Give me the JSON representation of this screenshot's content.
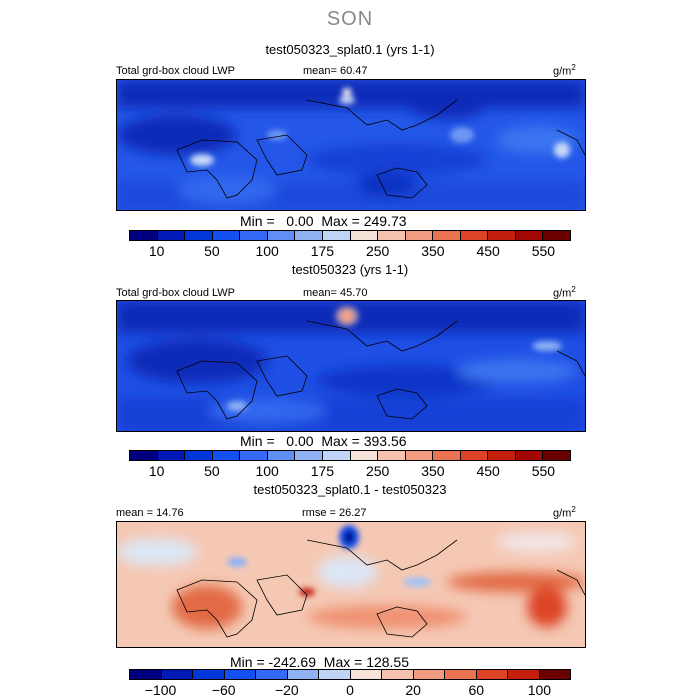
{
  "season": "SON",
  "chart_data": [
    {
      "type": "heatmap",
      "title": "test050323_splat0.1 (yrs 1-1)",
      "variable": "Total grd-box cloud LWP",
      "units": "g/m",
      "units_exp": "2",
      "mean_label": "mean=",
      "mean": "60.47",
      "min_label": "Min =",
      "min": "0.00",
      "max_label": "Max =",
      "max": "249.73",
      "levels": [
        10,
        25,
        50,
        75,
        100,
        125,
        175,
        200,
        250,
        300,
        350,
        400,
        450,
        500,
        550
      ],
      "tick_labels": [
        "10",
        "50",
        "100",
        "175",
        "250",
        "350",
        "450",
        "550"
      ],
      "colors": [
        "#00007f",
        "#0019b7",
        "#0037d9",
        "#1450ef",
        "#3369f5",
        "#5f8ff5",
        "#8fb2f5",
        "#c0d4f5",
        "#f5e2d8",
        "#f5c3ad",
        "#f19c80",
        "#ea7351",
        "#dd4426",
        "#c41e0d",
        "#a10803",
        "#6b0000"
      ]
    },
    {
      "type": "heatmap",
      "title": "test050323 (yrs 1-1)",
      "variable": "Total grd-box cloud LWP",
      "units": "g/m",
      "units_exp": "2",
      "mean_label": "mean=",
      "mean": "45.70",
      "min_label": "Min =",
      "min": "0.00",
      "max_label": "Max =",
      "max": "393.56",
      "levels": [
        10,
        25,
        50,
        75,
        100,
        125,
        175,
        200,
        250,
        300,
        350,
        400,
        450,
        500,
        550
      ],
      "tick_labels": [
        "10",
        "50",
        "100",
        "175",
        "250",
        "350",
        "450",
        "550"
      ],
      "colors": [
        "#00007f",
        "#0019b7",
        "#0037d9",
        "#1450ef",
        "#3369f5",
        "#5f8ff5",
        "#8fb2f5",
        "#c0d4f5",
        "#f5e2d8",
        "#f5c3ad",
        "#f19c80",
        "#ea7351",
        "#dd4426",
        "#c41e0d",
        "#a10803",
        "#6b0000"
      ]
    },
    {
      "type": "heatmap",
      "title": "test050323_splat0.1 - test050323",
      "units": "g/m",
      "units_exp": "2",
      "mean_label": "mean =",
      "mean": "14.76",
      "rmse_label": "rmse =",
      "rmse": "26.27",
      "min_label": "Min =",
      "min": "-242.69",
      "max_label": "Max =",
      "max": "128.55",
      "levels": [
        -100,
        -80,
        -60,
        -40,
        -20,
        -10,
        0,
        10,
        20,
        40,
        60,
        80,
        100
      ],
      "tick_labels": [
        "−100",
        "−60",
        "−20",
        "0",
        "20",
        "60",
        "100"
      ],
      "colors": [
        "#00007f",
        "#0019b7",
        "#0037d9",
        "#1450ef",
        "#3369f5",
        "#8fb2f5",
        "#c0d4f5",
        "#f5e2d8",
        "#f5c3ad",
        "#f19c80",
        "#ea7351",
        "#dd4426",
        "#c41e0d",
        "#6b0000"
      ]
    }
  ]
}
